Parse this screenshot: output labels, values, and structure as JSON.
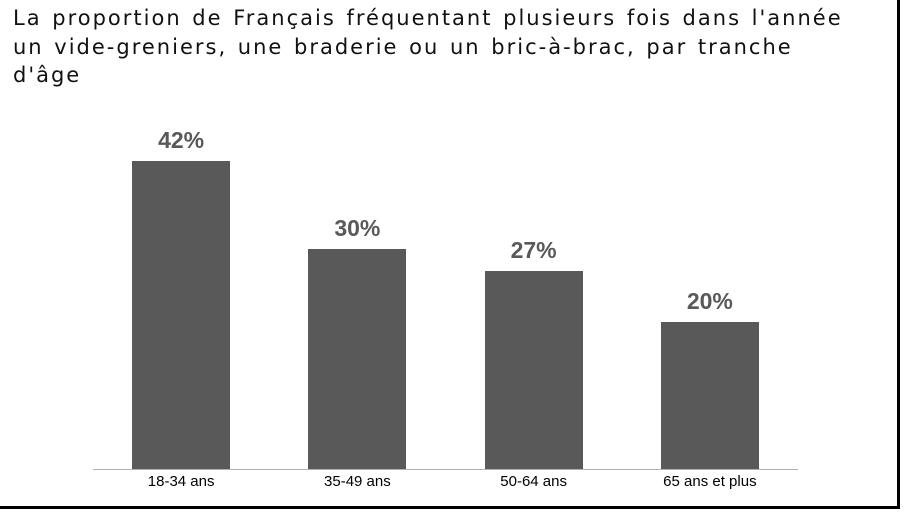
{
  "chart_data": {
    "type": "bar",
    "title": "La proportion de Français fréquentant plusieurs fois dans l'année\nun vide-greniers, une braderie ou un bric-à-brac, par tranche\nd'âge",
    "categories": [
      "18-34 ans",
      "35-49 ans",
      "50-64 ans",
      "65 ans et plus"
    ],
    "values": [
      42,
      30,
      27,
      20
    ],
    "data_labels": [
      "42%",
      "30%",
      "27%",
      "20%"
    ],
    "value_suffix": "%",
    "xlabel": "",
    "ylabel": "",
    "grid": false,
    "legend": "none",
    "colors": {
      "bar": "#595959",
      "value_label": "#595959",
      "category_label": "#000000",
      "axis_line": "#b0b0b0",
      "title": "#111111",
      "frame_border": "#000000",
      "background": "#ffffff"
    }
  }
}
